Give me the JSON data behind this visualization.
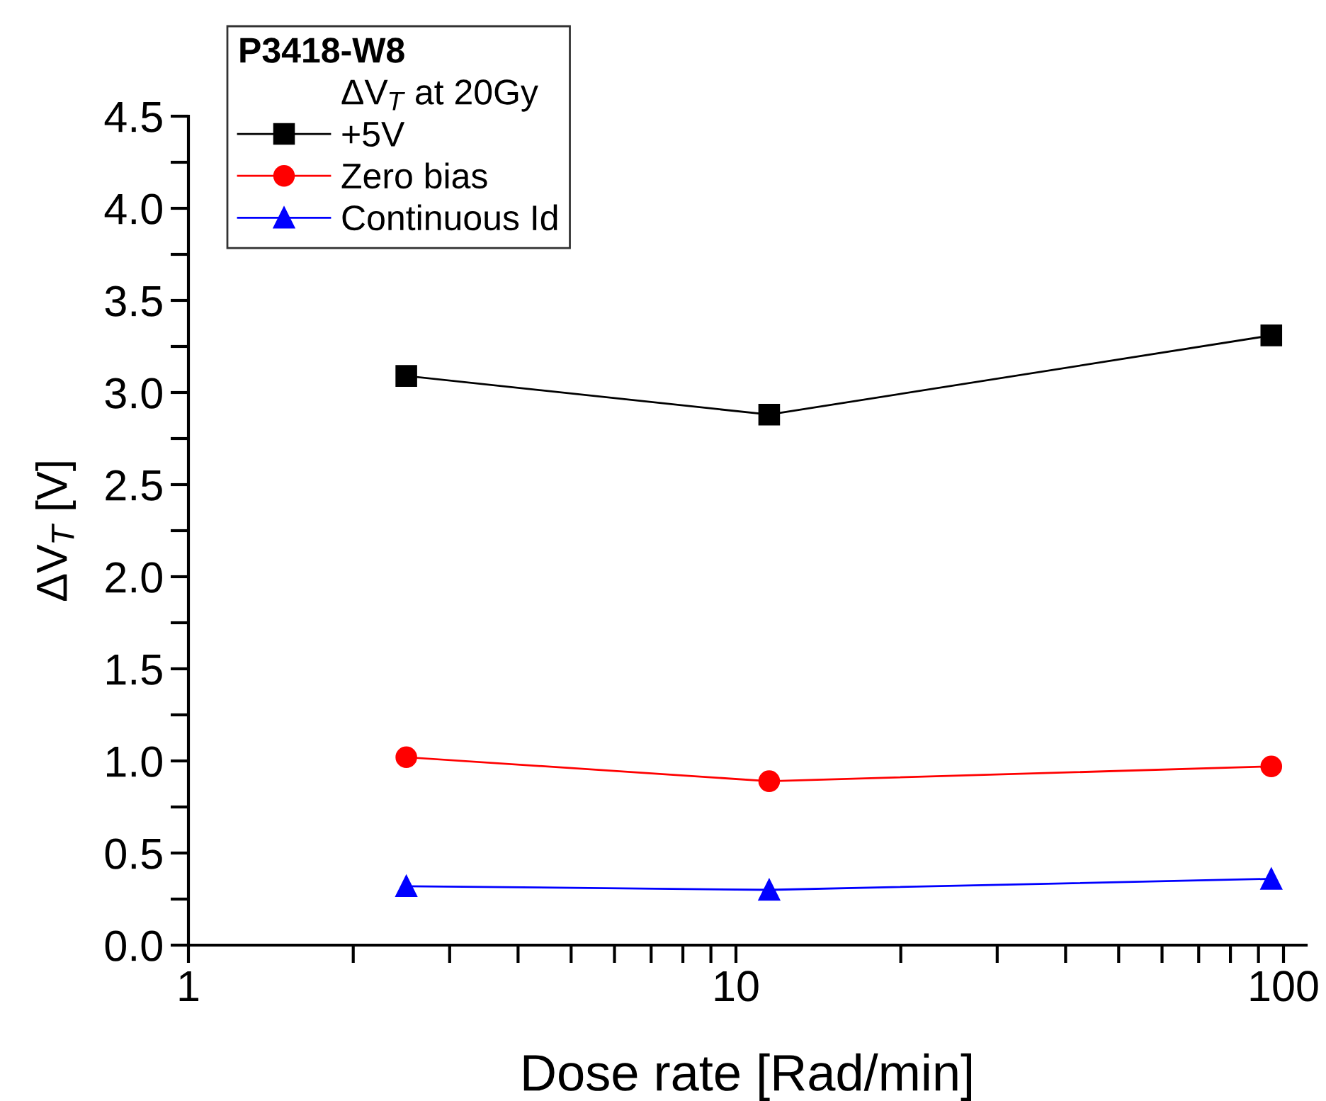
{
  "chart_data": {
    "type": "line",
    "xlabel": "Dose rate [Rad/min]",
    "ylabel": "ΔV$_{T}$ [V]",
    "legend_title": "P3418-W8",
    "annotations": [
      "ΔV$_{T}$ at 20Gy"
    ],
    "x": [
      2.5,
      11.5,
      95
    ],
    "series": [
      {
        "name": "+5V",
        "color": "#000000",
        "marker": "square",
        "values": [
          3.09,
          2.88,
          3.31
        ]
      },
      {
        "name": "Zero bias",
        "color": "#ff0000",
        "marker": "circle",
        "values": [
          1.02,
          0.89,
          0.97
        ]
      },
      {
        "name": "Continuous Id",
        "color": "#0000ff",
        "marker": "triangle",
        "values": [
          0.32,
          0.3,
          0.36
        ]
      }
    ],
    "log": "x",
    "xlim": [
      1,
      110
    ],
    "xticks": [
      1,
      {
        "value": 2,
        "label": null
      },
      {
        "value": 3,
        "label": null
      },
      {
        "value": 4,
        "label": null
      },
      {
        "value": 5,
        "label": null
      },
      {
        "value": 6,
        "label": null
      },
      {
        "value": 7,
        "label": null
      },
      {
        "value": 8,
        "label": null
      },
      {
        "value": 9,
        "label": null
      },
      10,
      {
        "value": 20,
        "label": null
      },
      {
        "value": 30,
        "label": null
      },
      {
        "value": 40,
        "label": null
      },
      {
        "value": 50,
        "label": null
      },
      {
        "value": 60,
        "label": null
      },
      {
        "value": 70,
        "label": null
      },
      {
        "value": 80,
        "label": null
      },
      {
        "value": 90,
        "label": null
      },
      100
    ],
    "ylim": [
      0,
      4.5
    ],
    "yticks": [
      {
        "value": 0,
        "label": "0.0"
      },
      {
        "value": 0.25,
        "label": null
      },
      0.5,
      {
        "value": 0.75,
        "label": null
      },
      {
        "value": 1,
        "label": "1.0"
      },
      {
        "value": 1.25,
        "label": null
      },
      1.5,
      {
        "value": 1.75,
        "label": null
      },
      {
        "value": 2,
        "label": "2.0"
      },
      {
        "value": 2.25,
        "label": null
      },
      2.5,
      {
        "value": 2.75,
        "label": null
      },
      {
        "value": 3,
        "label": "3.0"
      },
      {
        "value": 3.25,
        "label": null
      },
      3.5,
      {
        "value": 3.75,
        "label": null
      },
      {
        "value": 4,
        "label": "4.0"
      },
      {
        "value": 4.25,
        "label": null
      },
      4.5
    ],
    "grid": false,
    "legend": "top left",
    "line_style": "solid"
  }
}
